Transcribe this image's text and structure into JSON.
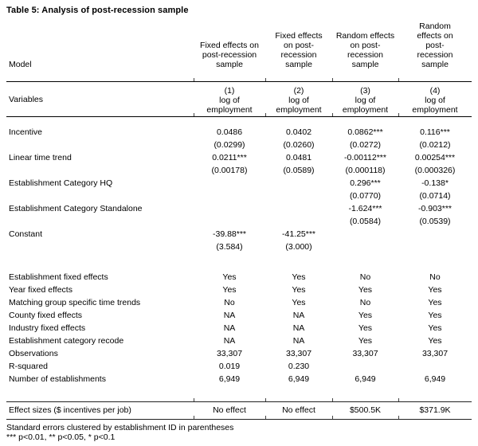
{
  "title": "Table 5: Analysis of post-recession sample",
  "table": {
    "model_label": "Model",
    "variables_label": "Variables",
    "columns": [
      {
        "header": "Fixed effects on\npost-recession\nsample",
        "number": "(1)",
        "depvar": "log of\nemployment"
      },
      {
        "header": "Fixed effects\non post-\nrecession\nsample",
        "number": "(2)",
        "depvar": "log of\nemployment"
      },
      {
        "header": "Random effects\non post-\nrecession\nsample",
        "number": "(3)",
        "depvar": "log of\nemployment"
      },
      {
        "header": "Random\neffects on\npost-\nrecession\nsample",
        "number": "(4)",
        "depvar": "log of\nemployment"
      }
    ],
    "coef_rows": [
      {
        "label": "Incentive",
        "coefs": [
          "0.0486",
          "0.0402",
          "0.0862***",
          "0.116***"
        ],
        "ses": [
          "(0.0299)",
          "(0.0260)",
          "(0.0272)",
          "(0.0212)"
        ]
      },
      {
        "label": "Linear time trend",
        "coefs": [
          "0.0211***",
          "0.0481",
          "-0.00112***",
          "0.00254***"
        ],
        "ses": [
          "(0.00178)",
          "(0.0589)",
          "(0.000118)",
          "(0.000326)"
        ]
      },
      {
        "label": "Establishment Category HQ",
        "coefs": [
          "",
          "",
          "0.296***",
          "-0.138*"
        ],
        "ses": [
          "",
          "",
          "(0.0770)",
          "(0.0714)"
        ]
      },
      {
        "label": "Establishment Category Standalone",
        "coefs": [
          "",
          "",
          "-1.624***",
          "-0.903***"
        ],
        "ses": [
          "",
          "",
          "(0.0584)",
          "(0.0539)"
        ]
      },
      {
        "label": "Constant",
        "coefs": [
          "-39.88***",
          "-41.25***",
          "",
          ""
        ],
        "ses": [
          "(3.584)",
          "(3.000)",
          "",
          ""
        ]
      }
    ],
    "info_rows": [
      {
        "label": "Establishment fixed effects",
        "values": [
          "Yes",
          "Yes",
          "No",
          "No"
        ]
      },
      {
        "label": "Year fixed effects",
        "values": [
          "Yes",
          "Yes",
          "Yes",
          "Yes"
        ]
      },
      {
        "label": "Matching group specific time trends",
        "values": [
          "No",
          "Yes",
          "No",
          "Yes"
        ]
      },
      {
        "label": "County fixed effects",
        "values": [
          "NA",
          "NA",
          "Yes",
          "Yes"
        ]
      },
      {
        "label": "Industry fixed effects",
        "values": [
          "NA",
          "NA",
          "Yes",
          "Yes"
        ]
      },
      {
        "label": "Establishment category recode",
        "values": [
          "NA",
          "NA",
          "Yes",
          "Yes"
        ]
      },
      {
        "label": "Observations",
        "values": [
          "33,307",
          "33,307",
          "33,307",
          "33,307"
        ]
      },
      {
        "label": "R-squared",
        "values": [
          "0.019",
          "0.230",
          "",
          ""
        ]
      },
      {
        "label": "Number of establishments",
        "values": [
          "6,949",
          "6,949",
          "6,949",
          "6,949"
        ]
      }
    ],
    "effect_row": {
      "label": "Effect sizes ($ incentives per job)",
      "values": [
        "No effect",
        "No effect",
        "$500.5K",
        "$371.9K"
      ]
    }
  },
  "footnotes": [
    "Standard errors clustered by establishment ID in parentheses",
    "*** p<0.01, ** p<0.05, * p<0.1"
  ]
}
